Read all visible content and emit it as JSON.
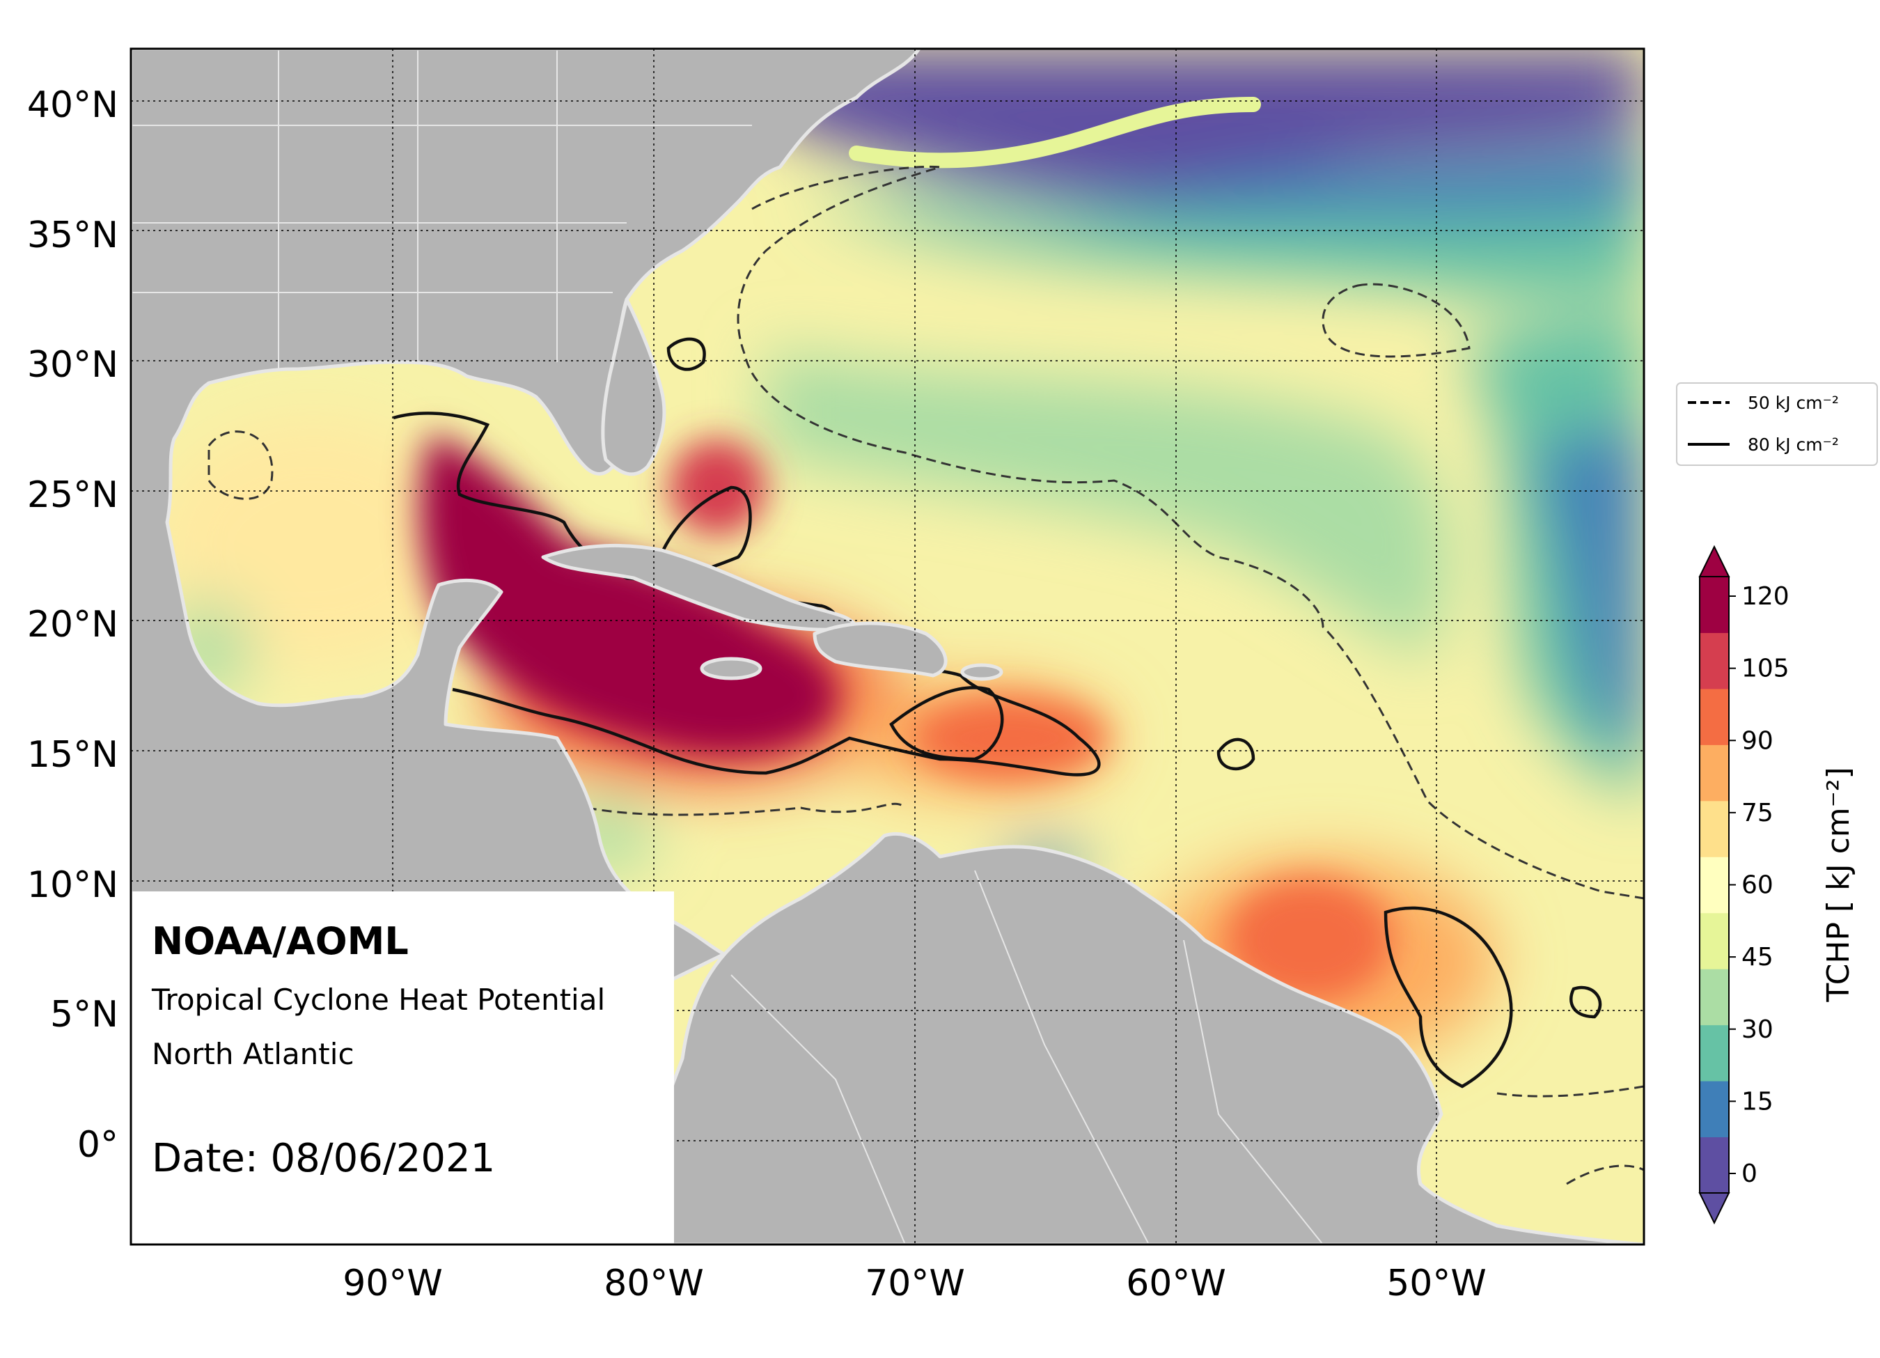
{
  "map": {
    "annotation": {
      "brand": "NOAA/AOML",
      "product": "Tropical Cyclone Heat Potential",
      "region": "North Atlantic",
      "date": "Date: 08/06/2021"
    },
    "lat_ticks": [
      "40°N",
      "35°N",
      "30°N",
      "25°N",
      "20°N",
      "15°N",
      "10°N",
      "5°N",
      "0°"
    ],
    "lon_ticks": [
      "90°W",
      "80°W",
      "70°W",
      "60°W",
      "50°W"
    ],
    "extent": {
      "lon_min": -100,
      "lon_max": -42,
      "lat_min": -4,
      "lat_max": 42
    },
    "legend": {
      "items": [
        {
          "style": "dashed",
          "label": "50 kJ cm⁻²"
        },
        {
          "style": "solid",
          "label": "80 kJ cm⁻²"
        }
      ]
    },
    "colorbar": {
      "label": "TCHP [ kJ cm⁻²]",
      "ticks": [
        "0",
        "15",
        "30",
        "45",
        "60",
        "75",
        "90",
        "105",
        "120"
      ],
      "colors": [
        "#5e4fa2",
        "#3f7fb8",
        "#66c2a5",
        "#abdda4",
        "#e6f598",
        "#ffffbf",
        "#fee08b",
        "#fdae61",
        "#f46d43",
        "#d53e4f",
        "#9e0142"
      ]
    },
    "colors": {
      "land": "#b4b4b4",
      "coast": "#e6e6e6",
      "low": "#5e4fa2",
      "high": "#9e0142"
    }
  }
}
